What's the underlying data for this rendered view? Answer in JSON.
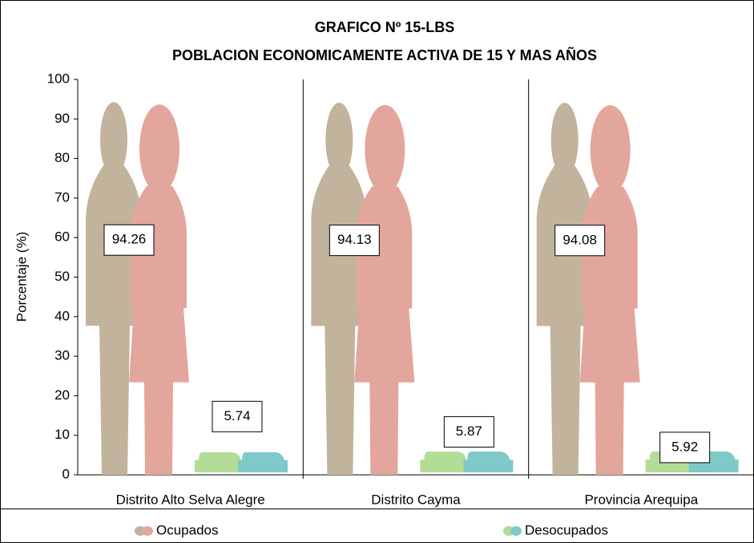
{
  "chart_data": {
    "type": "pictogram",
    "title": "GRAFICO Nº 15-LBS",
    "subtitle": "POBLACION ECONOMICAMENTE ACTIVA DE 15 Y MAS AÑOS",
    "y_label": "Porcentaje (%)",
    "categories": [
      "Distrito Alto Selva Alegre",
      "Distrito Cayma",
      "Provincia Arequipa"
    ],
    "series": [
      {
        "name": "Ocupados",
        "colors": [
          "#c2b39c",
          "#e3a69c"
        ],
        "values": [
          94.26,
          94.13,
          94.08
        ]
      },
      {
        "name": "Desocupados",
        "colors": [
          "#b3dd97",
          "#7fc9c9"
        ],
        "values": [
          5.74,
          5.87,
          5.92
        ]
      }
    ],
    "ylim": [
      0,
      100
    ],
    "yticks": [
      0,
      10,
      20,
      30,
      40,
      50,
      60,
      70,
      80,
      90,
      100
    ]
  }
}
